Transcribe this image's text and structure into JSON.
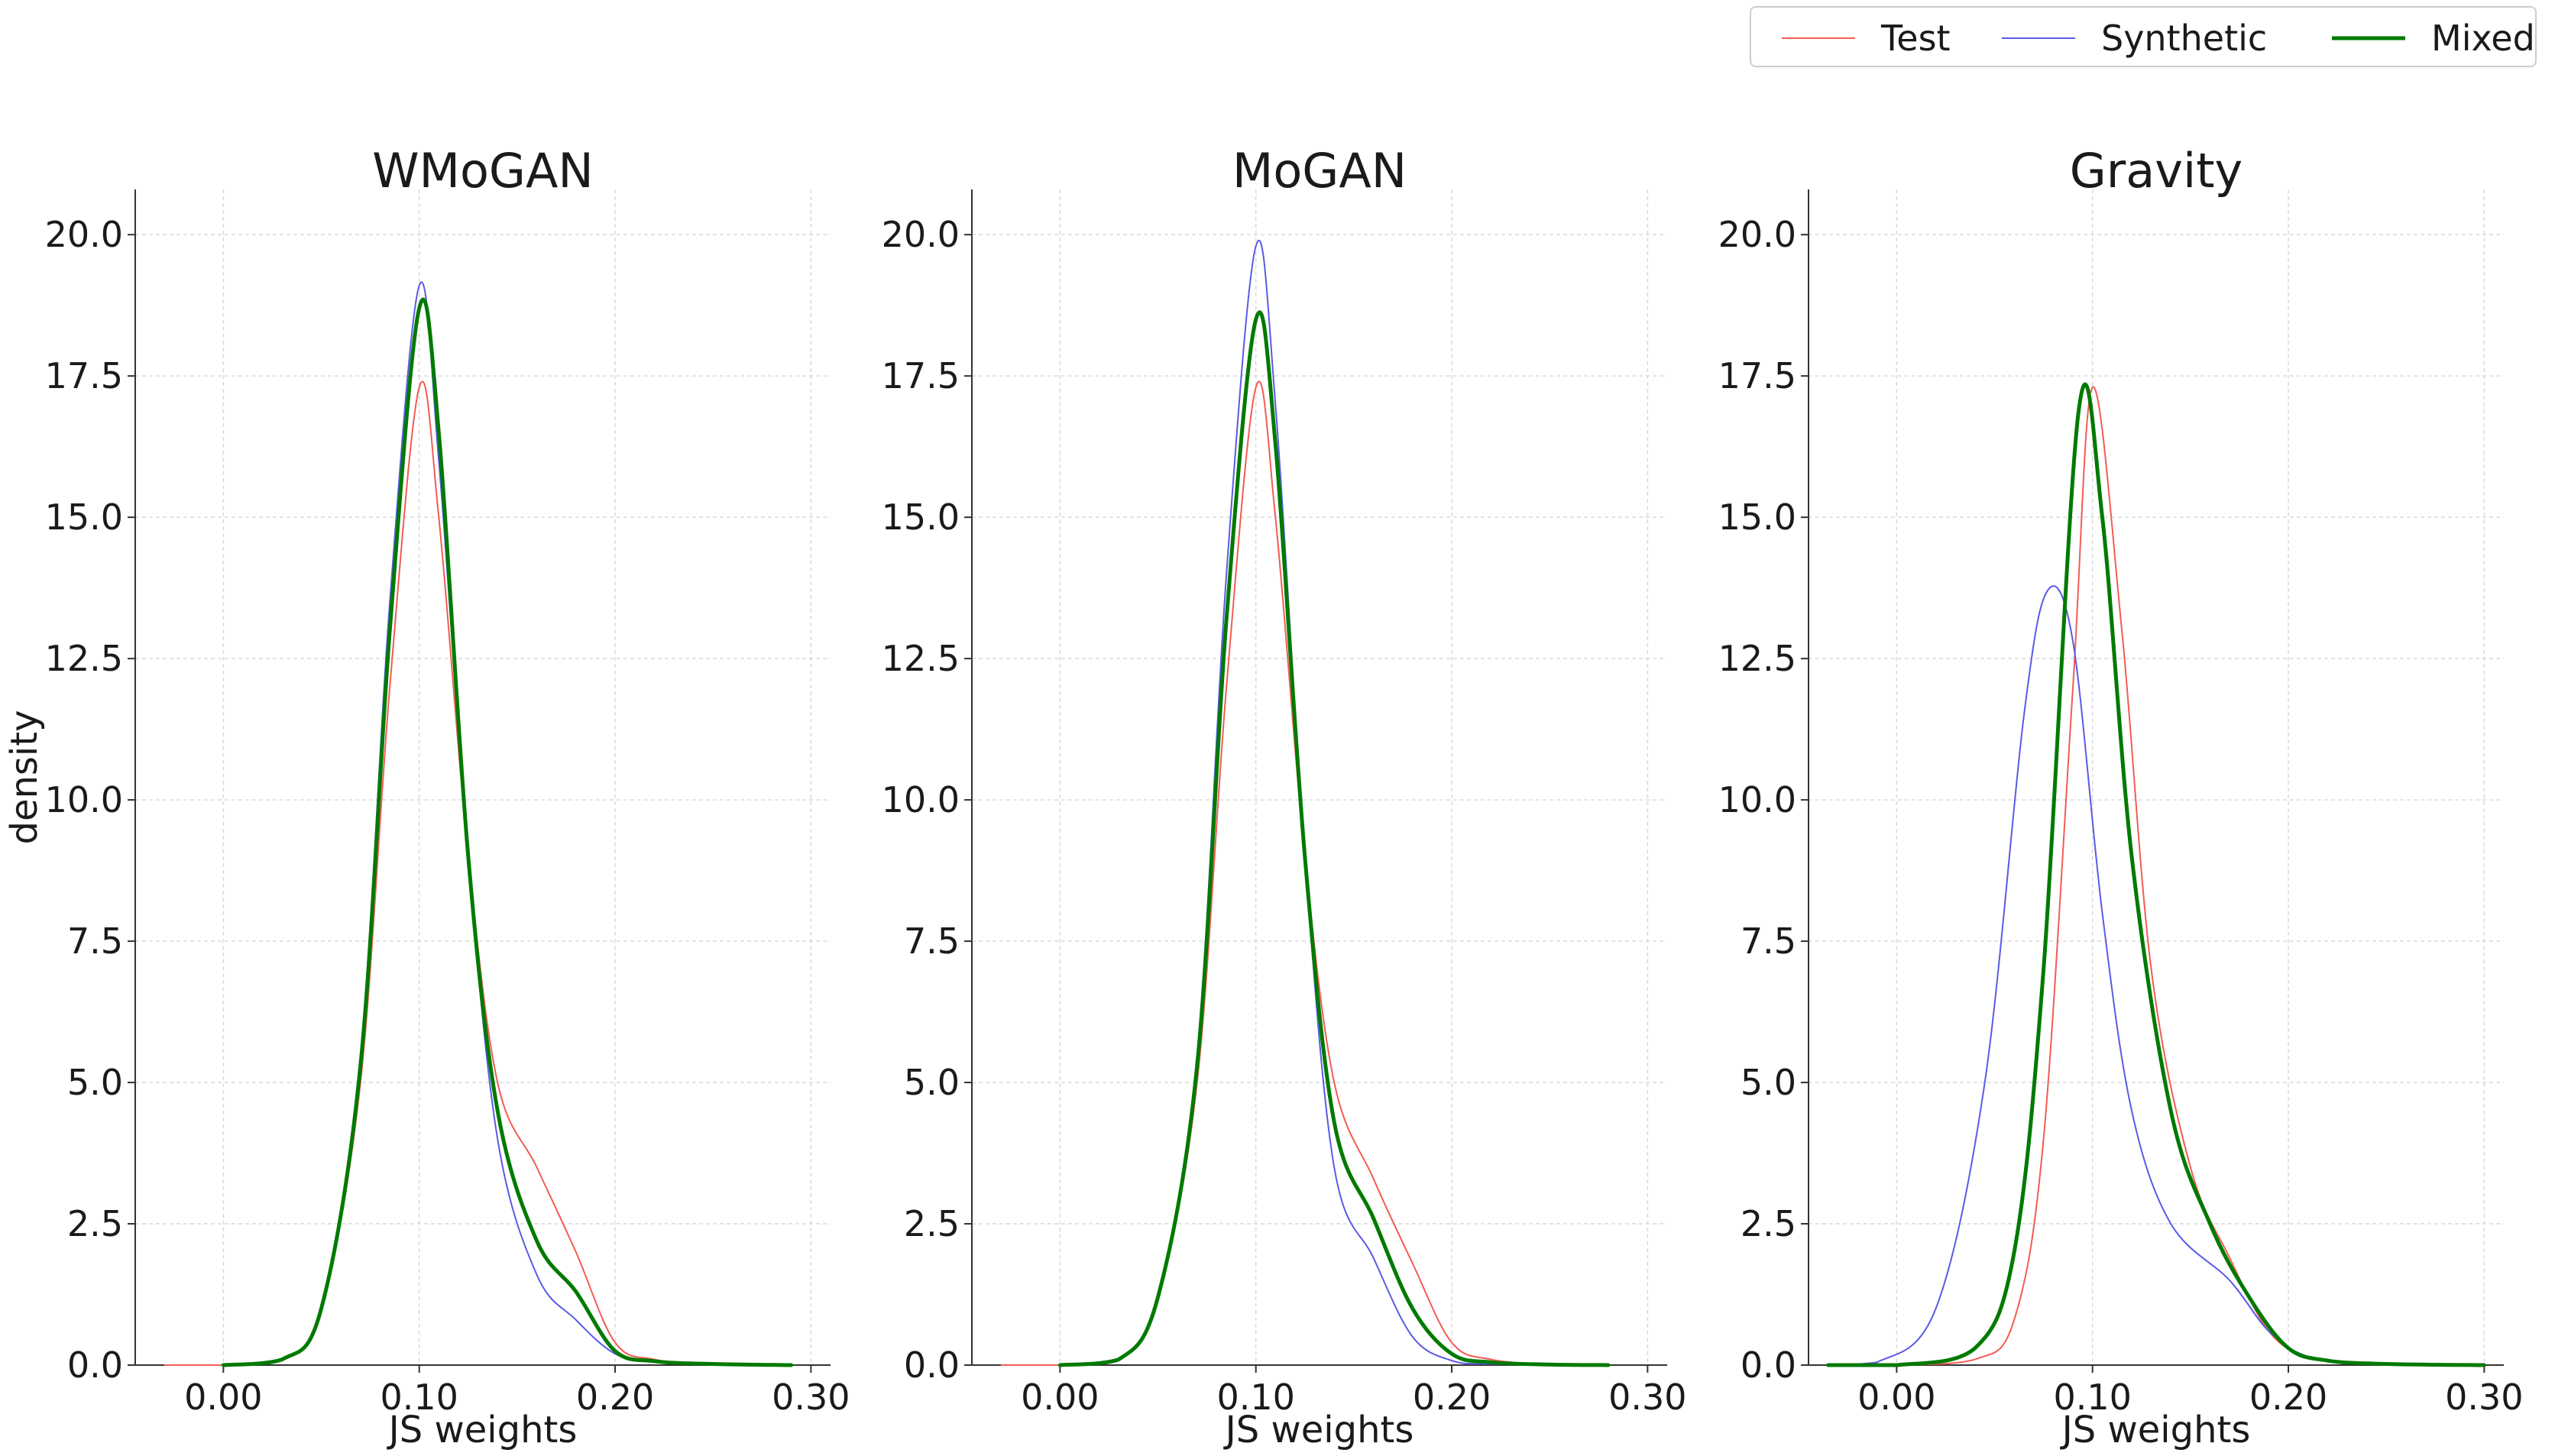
{
  "legend": {
    "test": "Test",
    "synthetic": "Synthetic",
    "mixed": "Mixed"
  },
  "colors": {
    "test": "#f25c54",
    "synthetic": "#5a5ae6",
    "mixed": "#007a00"
  },
  "chart_data": [
    {
      "type": "line",
      "title": "WMoGAN",
      "xlabel": "JS weights",
      "ylabel": "density",
      "xlim": [
        -0.045,
        0.31
      ],
      "ylim": [
        0,
        20.8
      ],
      "xticks": [
        "0.00",
        "0.10",
        "0.20",
        "0.30"
      ],
      "yticks": [
        "0.0",
        "2.5",
        "5.0",
        "7.5",
        "10.0",
        "12.5",
        "15.0",
        "17.5",
        "20.0"
      ],
      "grid": true,
      "series": [
        {
          "name": "Test",
          "x": [
            -0.03,
            0.0,
            0.03,
            0.05,
            0.07,
            0.085,
            0.1,
            0.11,
            0.125,
            0.14,
            0.16,
            0.18,
            0.2,
            0.22,
            0.25,
            0.29
          ],
          "y": [
            0,
            0,
            0.1,
            1.0,
            5.0,
            12.0,
            17.3,
            15.0,
            9.0,
            5.0,
            3.5,
            2.0,
            0.4,
            0.1,
            0.02,
            0
          ]
        },
        {
          "name": "Synthetic",
          "x": [
            0.0,
            0.03,
            0.05,
            0.07,
            0.085,
            0.1,
            0.11,
            0.125,
            0.14,
            0.16,
            0.18,
            0.2,
            0.22,
            0.25,
            0.29
          ],
          "y": [
            0,
            0.1,
            1.0,
            5.5,
            13.5,
            19.1,
            16.0,
            9.0,
            4.0,
            1.6,
            0.8,
            0.2,
            0.05,
            0.02,
            0
          ]
        },
        {
          "name": "Mixed",
          "x": [
            0.0,
            0.03,
            0.05,
            0.07,
            0.085,
            0.1,
            0.11,
            0.125,
            0.14,
            0.16,
            0.18,
            0.2,
            0.22,
            0.25,
            0.29
          ],
          "y": [
            0,
            0.1,
            1.0,
            5.3,
            13.0,
            18.7,
            16.5,
            9.0,
            4.5,
            2.2,
            1.3,
            0.25,
            0.07,
            0.02,
            0
          ]
        }
      ]
    },
    {
      "type": "line",
      "title": "MoGAN",
      "xlabel": "JS weights",
      "ylabel": "",
      "xlim": [
        -0.045,
        0.31
      ],
      "ylim": [
        0,
        20.8
      ],
      "xticks": [
        "0.00",
        "0.10",
        "0.20",
        "0.30"
      ],
      "yticks": [
        "0.0",
        "2.5",
        "5.0",
        "7.5",
        "10.0",
        "12.5",
        "15.0",
        "17.5",
        "20.0"
      ],
      "grid": true,
      "series": [
        {
          "name": "Test",
          "x": [
            -0.03,
            0.0,
            0.03,
            0.05,
            0.07,
            0.085,
            0.1,
            0.11,
            0.125,
            0.14,
            0.16,
            0.18,
            0.2,
            0.22,
            0.25,
            0.28
          ],
          "y": [
            0,
            0,
            0.1,
            1.2,
            5.0,
            12.0,
            17.3,
            15.0,
            9.0,
            5.0,
            3.3,
            1.8,
            0.4,
            0.1,
            0.02,
            0
          ]
        },
        {
          "name": "Synthetic",
          "x": [
            0.0,
            0.03,
            0.05,
            0.07,
            0.085,
            0.1,
            0.11,
            0.125,
            0.14,
            0.16,
            0.18,
            0.2,
            0.22,
            0.25,
            0.28
          ],
          "y": [
            0,
            0.1,
            1.2,
            5.5,
            14.0,
            19.8,
            17.0,
            9.0,
            3.5,
            1.9,
            0.5,
            0.08,
            0.02,
            0,
            0
          ]
        },
        {
          "name": "Mixed",
          "x": [
            0.0,
            0.03,
            0.05,
            0.07,
            0.085,
            0.1,
            0.11,
            0.125,
            0.14,
            0.16,
            0.18,
            0.2,
            0.22,
            0.25,
            0.28
          ],
          "y": [
            0,
            0.1,
            1.2,
            5.3,
            13.2,
            18.5,
            16.3,
            9.0,
            4.3,
            2.6,
            1.0,
            0.2,
            0.05,
            0.01,
            0
          ]
        }
      ]
    },
    {
      "type": "line",
      "title": "Gravity",
      "xlabel": "JS weights",
      "ylabel": "",
      "xlim": [
        -0.045,
        0.31
      ],
      "ylim": [
        0,
        20.8
      ],
      "xticks": [
        "0.00",
        "0.10",
        "0.20",
        "0.30"
      ],
      "yticks": [
        "0.0",
        "2.5",
        "5.0",
        "7.5",
        "10.0",
        "12.5",
        "15.0",
        "17.5",
        "20.0"
      ],
      "grid": true,
      "series": [
        {
          "name": "Test",
          "x": [
            -0.035,
            0.0,
            0.04,
            0.06,
            0.075,
            0.09,
            0.1,
            0.115,
            0.13,
            0.15,
            0.17,
            0.19,
            0.21,
            0.24,
            0.29
          ],
          "y": [
            0,
            0,
            0.1,
            0.8,
            4.0,
            12.0,
            17.3,
            13.0,
            7.0,
            3.5,
            1.9,
            0.6,
            0.15,
            0.03,
            0
          ]
        },
        {
          "name": "Synthetic",
          "x": [
            -0.035,
            -0.01,
            0.02,
            0.045,
            0.065,
            0.077,
            0.09,
            0.105,
            0.12,
            0.14,
            0.17,
            0.19,
            0.21,
            0.24,
            0.3
          ],
          "y": [
            0,
            0.05,
            1.0,
            5.0,
            11.5,
            13.7,
            12.8,
            8.0,
            4.5,
            2.5,
            1.5,
            0.6,
            0.15,
            0.03,
            0
          ]
        },
        {
          "name": "Mixed",
          "x": [
            -0.035,
            0.0,
            0.04,
            0.06,
            0.075,
            0.093,
            0.105,
            0.12,
            0.14,
            0.16,
            0.18,
            0.2,
            0.22,
            0.25,
            0.3
          ],
          "y": [
            0,
            0,
            0.3,
            2.0,
            7.0,
            16.9,
            15.0,
            9.0,
            4.5,
            2.5,
            1.2,
            0.3,
            0.08,
            0.02,
            0
          ]
        }
      ]
    }
  ]
}
